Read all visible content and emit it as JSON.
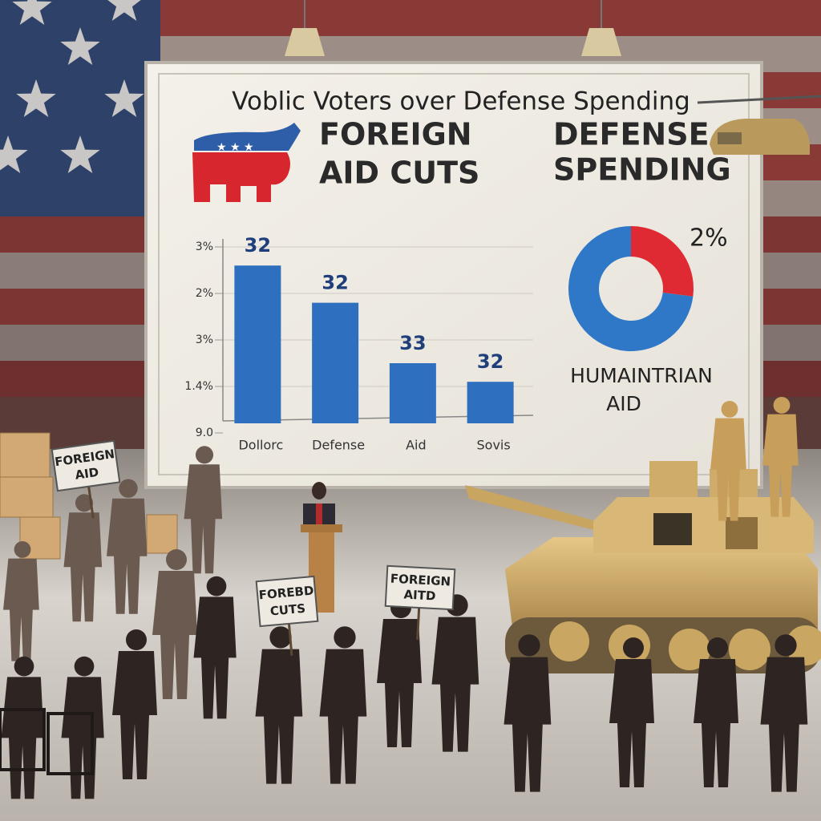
{
  "board": {
    "title": "Voblic Voters over Defense Spending",
    "left_heading": [
      "FOREIGN",
      "AID CUTS"
    ],
    "right_heading": [
      "DEFENSE",
      "SPENDING"
    ]
  },
  "chart_data": [
    {
      "type": "bar",
      "categories": [
        "Dollorc",
        "Defense",
        "Aid",
        "Sovis"
      ],
      "values": [
        3.6,
        2.8,
        1.5,
        1.1
      ],
      "annotations": [
        "32",
        "32",
        "33",
        "32"
      ],
      "color": "#2f6fc0",
      "ylim": [
        0,
        4
      ],
      "yticks": [
        {
          "value": 0,
          "label": "9.0"
        },
        {
          "value": 1,
          "label": "1.4%"
        },
        {
          "value": 2,
          "label": "3%"
        },
        {
          "value": 3,
          "label": "2%"
        },
        {
          "value": 4,
          "label": "3%"
        }
      ]
    },
    {
      "type": "donut",
      "values": [
        27,
        73
      ],
      "colors": [
        "#e02a33",
        "#2f78c8"
      ],
      "annotations": [
        "2%",
        "HUMAINTRIAN",
        "AID"
      ]
    }
  ],
  "signs": [
    [
      "FOREIGN",
      "AID"
    ],
    [
      "FOREBD",
      "CUTS"
    ],
    [
      "FOREIGN",
      "AITD"
    ]
  ]
}
